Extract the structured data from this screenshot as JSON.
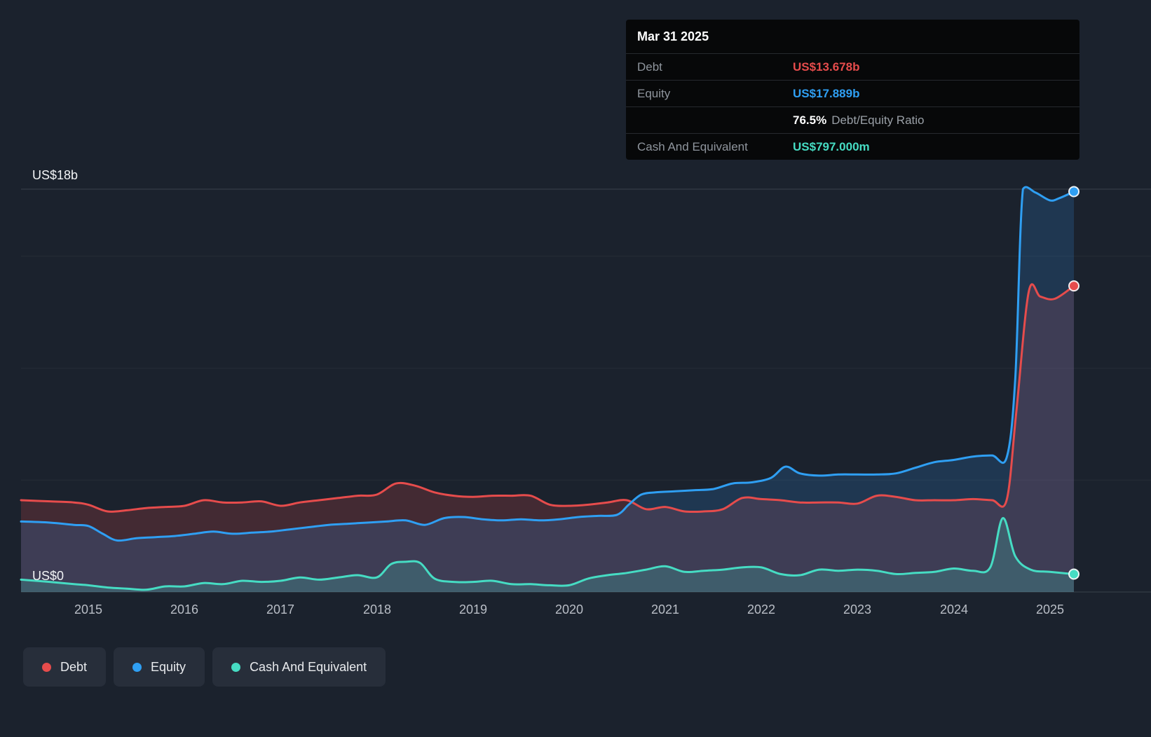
{
  "y_axis": {
    "top_label": "US$18b",
    "bottom_label": "US$0"
  },
  "tooltip": {
    "date": "Mar 31 2025",
    "debt_label": "Debt",
    "debt_value": "US$13.678b",
    "equity_label": "Equity",
    "equity_value": "US$17.889b",
    "ratio_value": "76.5%",
    "ratio_label": "Debt/Equity Ratio",
    "cash_label": "Cash And Equivalent",
    "cash_value": "US$797.000m"
  },
  "legend": {
    "items": [
      {
        "label": "Debt"
      },
      {
        "label": "Equity"
      },
      {
        "label": "Cash And Equivalent"
      }
    ]
  },
  "colors": {
    "background": "#1b222d",
    "grid_major": "#3a414c",
    "grid_minor": "#262d37",
    "tooltip_bg": "#070809"
  },
  "chart_data": {
    "type": "area",
    "title": "",
    "x_ticks": [
      "2015",
      "2016",
      "2017",
      "2018",
      "2019",
      "2020",
      "2021",
      "2022",
      "2023",
      "2024",
      "2025"
    ],
    "xlim": [
      2014.3,
      2025.25
    ],
    "ylim": [
      0,
      18
    ],
    "y_gridlines": [
      0,
      5,
      10,
      15,
      18
    ],
    "y_unit": "US$ billions",
    "legend_position": "bottom-left",
    "series": [
      {
        "name": "Debt",
        "color": "#e64c4c",
        "fill": "rgba(230,76,76,0.20)",
        "x": [
          2014.3,
          2014.6,
          2014.85,
          2015.0,
          2015.2,
          2015.4,
          2015.6,
          2015.8,
          2016.0,
          2016.2,
          2016.4,
          2016.6,
          2016.8,
          2017.0,
          2017.2,
          2017.4,
          2017.6,
          2017.8,
          2018.0,
          2018.2,
          2018.4,
          2018.6,
          2018.8,
          2019.0,
          2019.2,
          2019.4,
          2019.6,
          2019.8,
          2020.0,
          2020.2,
          2020.4,
          2020.6,
          2020.8,
          2021.0,
          2021.2,
          2021.4,
          2021.6,
          2021.8,
          2022.0,
          2022.2,
          2022.4,
          2022.6,
          2022.8,
          2023.0,
          2023.2,
          2023.4,
          2023.6,
          2023.8,
          2024.0,
          2024.2,
          2024.4,
          2024.55,
          2024.65,
          2024.78,
          2024.9,
          2025.05,
          2025.25
        ],
        "y": [
          4.1,
          4.05,
          4.0,
          3.9,
          3.6,
          3.65,
          3.75,
          3.8,
          3.85,
          4.1,
          4.0,
          4.0,
          4.05,
          3.85,
          4.0,
          4.1,
          4.2,
          4.3,
          4.35,
          4.85,
          4.75,
          4.45,
          4.3,
          4.25,
          4.3,
          4.3,
          4.3,
          3.9,
          3.85,
          3.9,
          4.0,
          4.1,
          3.7,
          3.8,
          3.6,
          3.6,
          3.7,
          4.2,
          4.15,
          4.1,
          4.0,
          4.0,
          4.0,
          3.95,
          4.3,
          4.25,
          4.1,
          4.1,
          4.1,
          4.15,
          4.1,
          4.1,
          8.0,
          13.4,
          13.2,
          13.1,
          13.678
        ]
      },
      {
        "name": "Equity",
        "color": "#2f9ff3",
        "fill": "rgba(47,130,210,0.22)",
        "x": [
          2014.3,
          2014.6,
          2014.85,
          2015.0,
          2015.15,
          2015.3,
          2015.5,
          2015.7,
          2015.9,
          2016.1,
          2016.3,
          2016.5,
          2016.7,
          2016.9,
          2017.1,
          2017.3,
          2017.5,
          2017.7,
          2017.9,
          2018.1,
          2018.3,
          2018.5,
          2018.7,
          2018.9,
          2019.1,
          2019.3,
          2019.5,
          2019.7,
          2019.9,
          2020.1,
          2020.3,
          2020.5,
          2020.62,
          2020.75,
          2020.9,
          2021.1,
          2021.3,
          2021.5,
          2021.7,
          2021.9,
          2022.1,
          2022.25,
          2022.4,
          2022.6,
          2022.8,
          2023.0,
          2023.2,
          2023.4,
          2023.6,
          2023.8,
          2024.0,
          2024.2,
          2024.4,
          2024.55,
          2024.64,
          2024.72,
          2024.85,
          2025.0,
          2025.1,
          2025.25
        ],
        "y": [
          3.15,
          3.1,
          3.0,
          2.95,
          2.6,
          2.3,
          2.4,
          2.45,
          2.5,
          2.6,
          2.7,
          2.6,
          2.65,
          2.7,
          2.8,
          2.9,
          3.0,
          3.05,
          3.1,
          3.15,
          3.2,
          3.0,
          3.3,
          3.35,
          3.25,
          3.2,
          3.25,
          3.2,
          3.25,
          3.35,
          3.4,
          3.45,
          3.9,
          4.35,
          4.45,
          4.5,
          4.55,
          4.6,
          4.85,
          4.9,
          5.1,
          5.6,
          5.3,
          5.2,
          5.25,
          5.25,
          5.25,
          5.3,
          5.55,
          5.8,
          5.9,
          6.05,
          6.1,
          6.0,
          9.5,
          18.0,
          17.85,
          17.5,
          17.6,
          17.889
        ]
      },
      {
        "name": "Cash And Equivalent",
        "color": "#46dcc3",
        "fill": "rgba(70,220,195,0.20)",
        "x": [
          2014.3,
          2014.6,
          2014.85,
          2015.0,
          2015.2,
          2015.4,
          2015.6,
          2015.8,
          2016.0,
          2016.2,
          2016.4,
          2016.6,
          2016.8,
          2017.0,
          2017.2,
          2017.4,
          2017.6,
          2017.8,
          2018.0,
          2018.15,
          2018.3,
          2018.45,
          2018.6,
          2018.8,
          2019.0,
          2019.2,
          2019.4,
          2019.6,
          2019.8,
          2020.0,
          2020.2,
          2020.4,
          2020.6,
          2020.8,
          2021.0,
          2021.2,
          2021.4,
          2021.6,
          2021.8,
          2022.0,
          2022.2,
          2022.4,
          2022.6,
          2022.8,
          2023.0,
          2023.2,
          2023.4,
          2023.6,
          2023.8,
          2024.0,
          2024.2,
          2024.38,
          2024.51,
          2024.64,
          2024.8,
          2025.0,
          2025.25
        ],
        "y": [
          0.55,
          0.45,
          0.35,
          0.3,
          0.2,
          0.15,
          0.1,
          0.25,
          0.25,
          0.4,
          0.35,
          0.5,
          0.45,
          0.5,
          0.65,
          0.55,
          0.65,
          0.75,
          0.65,
          1.25,
          1.35,
          1.3,
          0.6,
          0.45,
          0.45,
          0.5,
          0.35,
          0.35,
          0.3,
          0.3,
          0.6,
          0.75,
          0.85,
          1.0,
          1.15,
          0.9,
          0.95,
          1.0,
          1.1,
          1.1,
          0.8,
          0.75,
          1.0,
          0.95,
          1.0,
          0.95,
          0.8,
          0.85,
          0.9,
          1.05,
          0.95,
          1.1,
          3.3,
          1.6,
          1.0,
          0.9,
          0.797
        ]
      }
    ]
  }
}
